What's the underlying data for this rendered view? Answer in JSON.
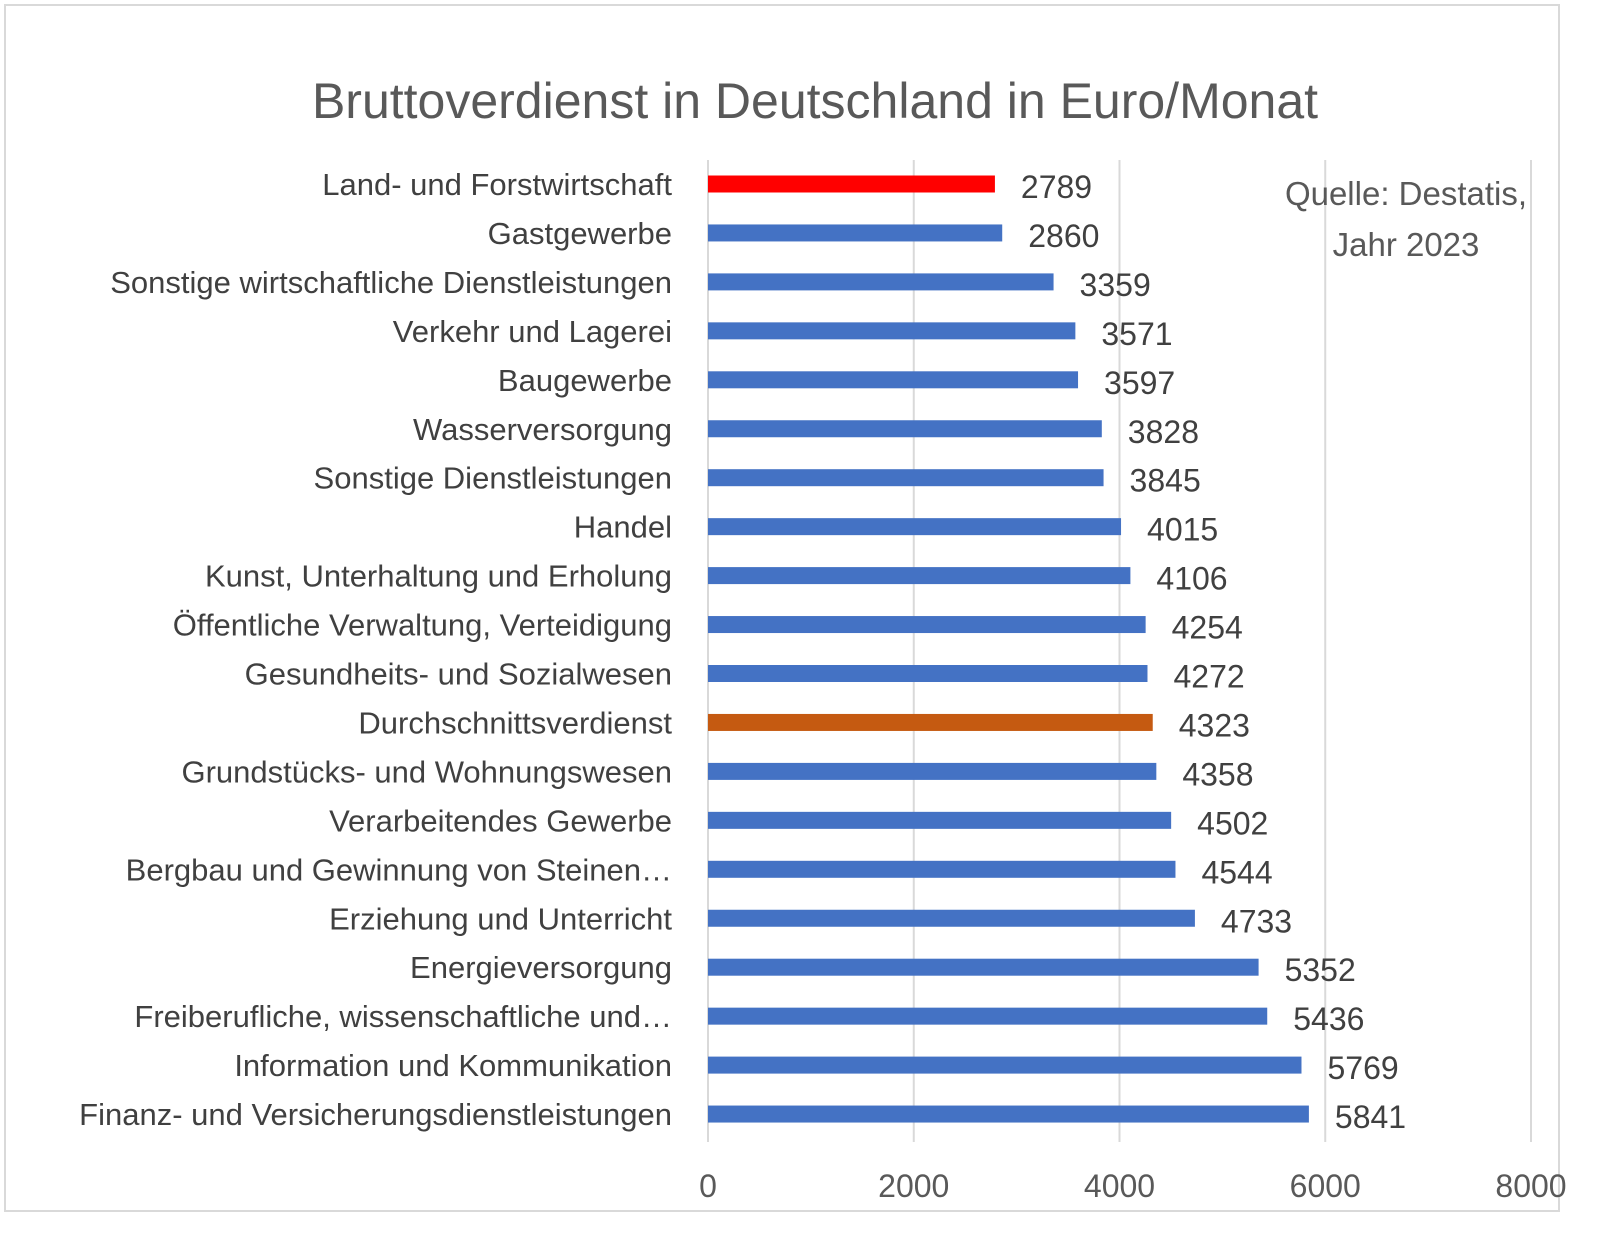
{
  "chart_data": {
    "type": "bar",
    "orientation": "horizontal",
    "title": "Bruttoverdienst in Deutschland in Euro/Monat",
    "annotation": [
      "Quelle: Destatis,",
      "Jahr 2023"
    ],
    "categories": [
      "Land- und Forstwirtschaft",
      "Gastgewerbe",
      "Sonstige wirtschaftliche Dienstleistungen",
      "Verkehr und Lagerei",
      "Baugewerbe",
      "Wasserversorgung",
      "Sonstige Dienstleistungen",
      "Handel",
      "Kunst, Unterhaltung und Erholung",
      "Öffentliche Verwaltung, Verteidigung",
      "Gesundheits- und Sozialwesen",
      "Durchschnittsverdienst",
      "Grundstücks- und Wohnungswesen",
      "Verarbeitendes Gewerbe",
      "Bergbau und Gewinnung von Steinen…",
      "Erziehung und Unterricht",
      "Energieversorgung",
      "Freiberufliche, wissenschaftliche und…",
      "Information und Kommunikation",
      "Finanz- und Versicherungsdienstleistungen"
    ],
    "values": [
      2789,
      2860,
      3359,
      3571,
      3597,
      3828,
      3845,
      4015,
      4106,
      4254,
      4272,
      4323,
      4358,
      4502,
      4544,
      4733,
      5352,
      5436,
      5769,
      5841
    ],
    "bar_colors": {
      "default": "#4472c4",
      "Land- und Forstwirtschaft": "#ff0000",
      "Durchschnittsverdienst": "#c55a11"
    },
    "xlim": [
      0,
      8000
    ],
    "xticks": [
      "0",
      "2000",
      "4000",
      "6000",
      "8000"
    ],
    "grid": true,
    "legend": "none"
  }
}
